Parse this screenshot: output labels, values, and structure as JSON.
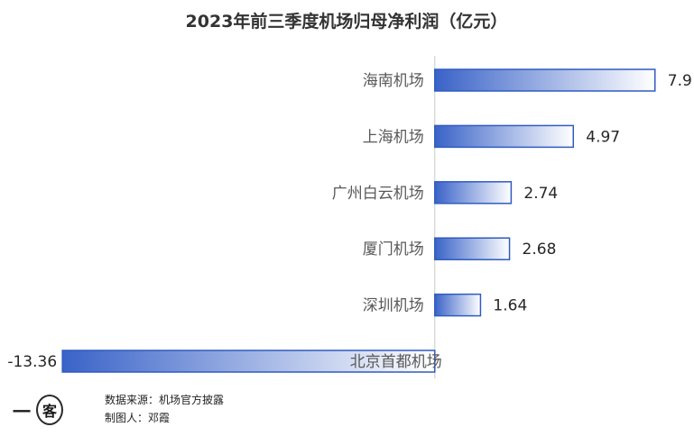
{
  "chart_data": {
    "type": "bar",
    "orientation": "horizontal",
    "title": "2023年前三季度机场归母净利润（亿元）",
    "categories": [
      "海南机场",
      "上海机场",
      "广州白云机场",
      "厦门机场",
      "深圳机场",
      "北京首都机场"
    ],
    "values": [
      7.9,
      4.97,
      2.74,
      2.68,
      1.64,
      -13.36
    ],
    "value_labels": [
      "7.9",
      "4.97",
      "2.74",
      "2.68",
      "1.64",
      "-13.36"
    ],
    "xlim": [
      -15.6,
      9.3
    ],
    "grid": false,
    "legend": "none",
    "colors": {
      "bar_dark": "#3a63c8",
      "bar_light": "#ffffff",
      "bar_border": "#2f5bc0",
      "axis": "#c8c8c8"
    }
  },
  "footer": {
    "logo_mark": "一",
    "logo_char": "客",
    "source": "数据来源：机场官方披露",
    "author": "制图人：邓霞"
  }
}
